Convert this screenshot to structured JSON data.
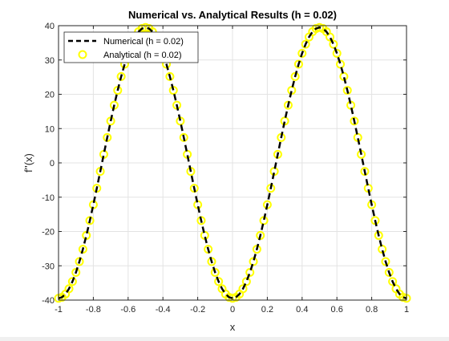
{
  "chart_data": {
    "type": "line",
    "title": "Numerical vs. Analytical Results (h = 0.02)",
    "xlabel": "x",
    "ylabel": "f''(x)",
    "xlim": [
      -1,
      1
    ],
    "ylim": [
      -40,
      40
    ],
    "xticks": [
      "-1",
      "-0.8",
      "-0.6",
      "-0.4",
      "-0.2",
      "0",
      "0.2",
      "0.4",
      "0.6",
      "0.8",
      "1"
    ],
    "yticks": [
      "-40",
      "-30",
      "-20",
      "-10",
      "0",
      "10",
      "20",
      "30",
      "40"
    ],
    "grid": true,
    "legend_position": "top-left",
    "function": "-4*pi^2*cos(2*pi*x)",
    "x_step": 0.02,
    "series": [
      {
        "name": "Numerical (h = 0.02)",
        "style": "dashed-line",
        "color": "#000000"
      },
      {
        "name": "Analytical (h = 0.02)",
        "style": "circle-markers",
        "color": "#ffff00"
      }
    ]
  }
}
